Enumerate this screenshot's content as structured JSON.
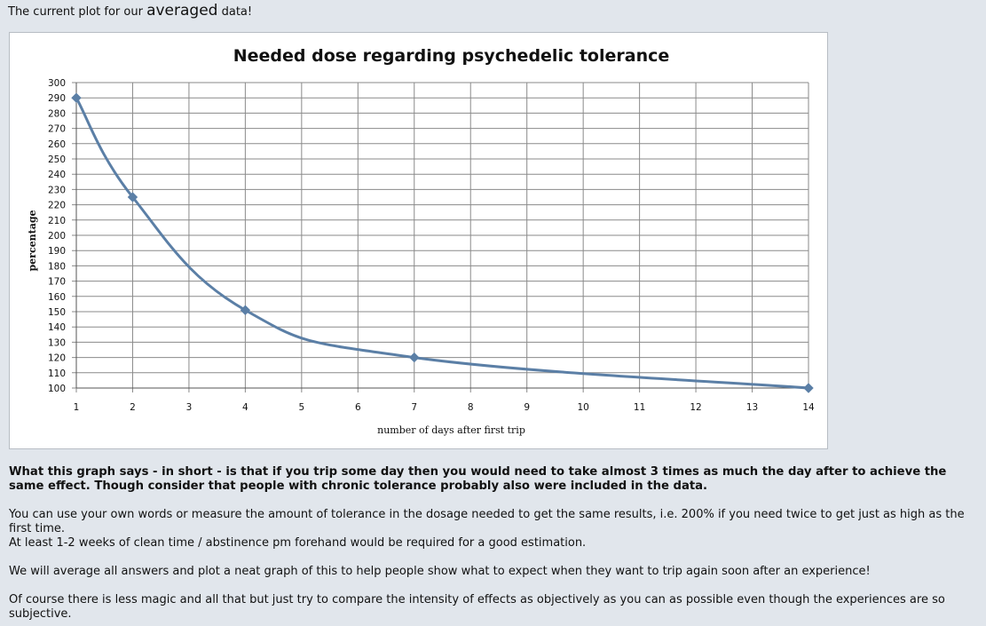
{
  "intro": {
    "before": "The current plot for our ",
    "emphasis": "averaged",
    "after": " data!"
  },
  "chart_data": {
    "type": "line",
    "title": "Needed dose regarding psychedelic tolerance",
    "xlabel": "number of days after first trip",
    "ylabel": "percentage",
    "xlim": [
      1,
      14
    ],
    "ylim": [
      100,
      300
    ],
    "x_ticks": [
      1,
      2,
      3,
      4,
      5,
      6,
      7,
      8,
      9,
      10,
      11,
      12,
      13,
      14
    ],
    "y_ticks": [
      100,
      110,
      120,
      130,
      140,
      150,
      160,
      170,
      180,
      190,
      200,
      210,
      220,
      230,
      240,
      250,
      260,
      270,
      280,
      290,
      300
    ],
    "grid": true,
    "legend": "none",
    "smooth": true,
    "color": "#5b7fa6",
    "series": [
      {
        "x": [
          1,
          2,
          4,
          7,
          14
        ],
        "y": [
          290,
          225,
          151,
          120,
          100
        ]
      }
    ]
  },
  "text": {
    "bold_paragraph": "What this graph says - in short - is that if you trip some day then you would need to take almost 3 times as much the day after to achieve the same effect. Though consider that people with chronic tolerance probably also were included in the data.",
    "paragraph_1": "You can use your own words or measure the amount of tolerance in the dosage needed to get the same results, i.e. 200% if you need twice to get just as high as the first time.",
    "paragraph_2": "At least 1-2 weeks of clean time / abstinence pm forehand would be required for a good estimation.",
    "paragraph_3": "We will average all answers and plot a neat graph of this to help people show what to expect when they want to trip again soon after an experience!",
    "paragraph_4": "Of course there is less magic and all that but just try to compare the intensity of effects as objectively as you can as possible even though the experiences are so subjective."
  }
}
